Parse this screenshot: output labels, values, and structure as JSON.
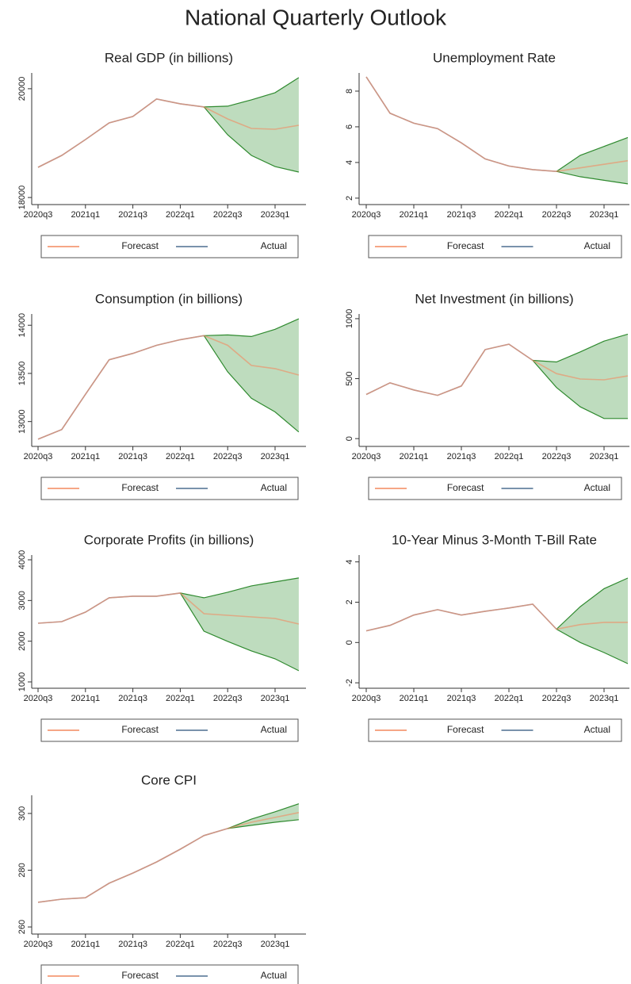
{
  "title": "National Quarterly Outlook",
  "chart_data": [
    {
      "type": "line",
      "title": "Real GDP (in billions)",
      "categories": [
        "2020q3",
        null,
        "2021q1",
        null,
        "2021q3",
        null,
        "2022q1",
        null,
        "2022q3",
        null,
        "2023q1",
        null
      ],
      "ylim": [
        17870,
        20290
      ],
      "yticks": [
        18000,
        20000
      ],
      "series": [
        {
          "name": "Forecast",
          "color": "#f4895f",
          "values": [
            18555,
            18774,
            19066,
            19372,
            19489,
            19810,
            19723,
            19664,
            19445,
            19270,
            19255,
            19328
          ]
        },
        {
          "name": "Actual",
          "color": "#4d6f90",
          "values": [
            18555,
            18774,
            19066,
            19372,
            19489,
            19810,
            19723,
            19664,
            null,
            null,
            null,
            null
          ]
        }
      ],
      "band": {
        "color": "#2f8a2f",
        "fill": "#b3d6b3",
        "upper": [
          null,
          null,
          null,
          null,
          null,
          null,
          null,
          19664,
          19679,
          19796,
          19927,
          20204
        ],
        "lower": [
          null,
          null,
          null,
          null,
          null,
          null,
          null,
          19664,
          19153,
          18774,
          18569,
          18467
        ]
      }
    },
    {
      "type": "line",
      "title": "Unemployment Rate",
      "categories": [
        "2020q3",
        null,
        "2021q1",
        null,
        "2021q3",
        null,
        "2022q1",
        null,
        "2022q3",
        null,
        "2023q1",
        null
      ],
      "ylim": [
        1.64,
        9.02
      ],
      "yticks": [
        2,
        4,
        6,
        8
      ],
      "series": [
        {
          "name": "Forecast",
          "color": "#f4895f",
          "values": [
            8.8,
            6.76,
            6.2,
            5.9,
            5.1,
            4.2,
            3.8,
            3.6,
            3.5,
            3.7,
            3.9,
            4.1
          ]
        },
        {
          "name": "Actual",
          "color": "#4d6f90",
          "values": [
            8.8,
            6.76,
            6.2,
            5.9,
            5.1,
            4.2,
            3.8,
            3.6,
            3.5,
            null,
            null,
            null
          ]
        }
      ],
      "band": {
        "color": "#2f8a2f",
        "fill": "#b3d6b3",
        "upper": [
          null,
          null,
          null,
          null,
          null,
          null,
          null,
          null,
          3.5,
          4.4,
          4.9,
          5.4
        ],
        "lower": [
          null,
          null,
          null,
          null,
          null,
          null,
          null,
          null,
          3.5,
          3.2,
          3.0,
          2.8
        ]
      }
    },
    {
      "type": "line",
      "title": "Consumption (in billions)",
      "categories": [
        "2020q3",
        null,
        "2021q1",
        null,
        "2021q3",
        null,
        "2022q1",
        null,
        "2022q3",
        null,
        "2023q1",
        null
      ],
      "ylim": [
        12742,
        14117
      ],
      "yticks": [
        13000,
        13500,
        14000
      ],
      "series": [
        {
          "name": "Forecast",
          "color": "#f4895f",
          "values": [
            12817,
            12917,
            13283,
            13642,
            13708,
            13792,
            13850,
            13892,
            13792,
            13583,
            13550,
            13483
          ]
        },
        {
          "name": "Actual",
          "color": "#4d6f90",
          "values": [
            12817,
            12917,
            13283,
            13642,
            13708,
            13792,
            13850,
            13892,
            null,
            null,
            null,
            null
          ]
        }
      ],
      "band": {
        "color": "#2f8a2f",
        "fill": "#b3d6b3",
        "upper": [
          null,
          null,
          null,
          null,
          null,
          null,
          null,
          13892,
          13900,
          13883,
          13958,
          14067
        ],
        "lower": [
          null,
          null,
          null,
          null,
          null,
          null,
          null,
          13892,
          13517,
          13242,
          13100,
          12892
        ]
      }
    },
    {
      "type": "line",
      "title": "Net Investment (in billions)",
      "categories": [
        "2020q3",
        null,
        "2021q1",
        null,
        "2021q3",
        null,
        "2022q1",
        null,
        "2022q3",
        null,
        "2023q1",
        null
      ],
      "ylim": [
        -65,
        1039
      ],
      "yticks": [
        0,
        500,
        1000
      ],
      "series": [
        {
          "name": "Forecast",
          "color": "#f4895f",
          "values": [
            368,
            465,
            406,
            361,
            439,
            742,
            787,
            652,
            542,
            497,
            490,
            523
          ]
        },
        {
          "name": "Actual",
          "color": "#4d6f90",
          "values": [
            368,
            465,
            406,
            361,
            439,
            742,
            787,
            652,
            null,
            null,
            null,
            null
          ]
        }
      ],
      "band": {
        "color": "#2f8a2f",
        "fill": "#b3d6b3",
        "upper": [
          null,
          null,
          null,
          null,
          null,
          null,
          null,
          652,
          639,
          723,
          813,
          871
        ],
        "lower": [
          null,
          null,
          null,
          null,
          null,
          null,
          null,
          652,
          426,
          265,
          168,
          168
        ]
      }
    },
    {
      "type": "line",
      "title": "Corporate Profits (in billions)",
      "categories": [
        "2020q3",
        null,
        "2021q1",
        null,
        "2021q3",
        null,
        "2022q1",
        null,
        "2022q3",
        null,
        "2023q1",
        null
      ],
      "ylim": [
        844,
        4117
      ],
      "yticks": [
        1000,
        2000,
        3000,
        4000
      ],
      "series": [
        {
          "name": "Forecast",
          "color": "#f4895f",
          "values": [
            2442,
            2481,
            2715,
            3066,
            3105,
            3105,
            3183,
            2676,
            2637,
            2598,
            2559,
            2422
          ]
        },
        {
          "name": "Actual",
          "color": "#4d6f90",
          "values": [
            2442,
            2481,
            2715,
            3066,
            3105,
            3105,
            3183,
            null,
            null,
            null,
            null,
            null
          ]
        }
      ],
      "band": {
        "color": "#2f8a2f",
        "fill": "#b3d6b3",
        "upper": [
          null,
          null,
          null,
          null,
          null,
          null,
          3183,
          3066,
          3203,
          3359,
          3456,
          3554
        ],
        "lower": [
          null,
          null,
          null,
          null,
          null,
          null,
          3183,
          2247,
          1996,
          1762,
          1567,
          1275
        ]
      }
    },
    {
      "type": "line",
      "title": "10-Year Minus 3-Month T-Bill Rate",
      "categories": [
        "2020q3",
        null,
        "2021q1",
        null,
        "2021q3",
        null,
        "2022q1",
        null,
        "2022q3",
        null,
        "2023q1",
        null
      ],
      "ylim": [
        -2.27,
        4.34
      ],
      "yticks": [
        -2,
        0,
        2,
        4
      ],
      "series": [
        {
          "name": "Forecast",
          "color": "#f4895f",
          "values": [
            0.58,
            0.85,
            1.36,
            1.63,
            1.36,
            1.55,
            1.71,
            1.9,
            0.66,
            0.89,
            1.0,
            1.0
          ]
        },
        {
          "name": "Actual",
          "color": "#4d6f90",
          "values": [
            0.58,
            0.85,
            1.36,
            1.63,
            1.36,
            1.55,
            1.71,
            1.9,
            0.66,
            null,
            null,
            null
          ]
        }
      ],
      "band": {
        "color": "#2f8a2f",
        "fill": "#b3d6b3",
        "upper": [
          null,
          null,
          null,
          null,
          null,
          null,
          null,
          null,
          0.66,
          1.78,
          2.67,
          3.2
        ],
        "lower": [
          null,
          null,
          null,
          null,
          null,
          null,
          null,
          null,
          0.66,
          0,
          -0.5,
          -1.05
        ]
      }
    },
    {
      "type": "line",
      "title": "Core CPI",
      "categories": [
        "2020q3",
        null,
        "2021q1",
        null,
        "2021q3",
        null,
        "2022q1",
        null,
        "2022q3",
        null,
        "2023q1",
        null
      ],
      "ylim": [
        257.5,
        306.4
      ],
      "yticks": [
        260,
        280,
        300
      ],
      "series": [
        {
          "name": "Forecast",
          "color": "#f4895f",
          "values": [
            268.7,
            269.8,
            270.3,
            275.4,
            279,
            282.9,
            287.4,
            292.2,
            294.7,
            296.9,
            298.6,
            300.3
          ]
        },
        {
          "name": "Actual",
          "color": "#4d6f90",
          "values": [
            268.7,
            269.8,
            270.3,
            275.4,
            279,
            282.9,
            287.4,
            292.2,
            294.7,
            null,
            null,
            null
          ]
        }
      ],
      "band": {
        "color": "#2f8a2f",
        "fill": "#b3d6b3",
        "upper": [
          null,
          null,
          null,
          null,
          null,
          null,
          null,
          null,
          294.7,
          298.0,
          300.6,
          303.4
        ],
        "lower": [
          null,
          null,
          null,
          null,
          null,
          null,
          null,
          null,
          294.7,
          295.8,
          296.9,
          297.8
        ]
      }
    }
  ]
}
